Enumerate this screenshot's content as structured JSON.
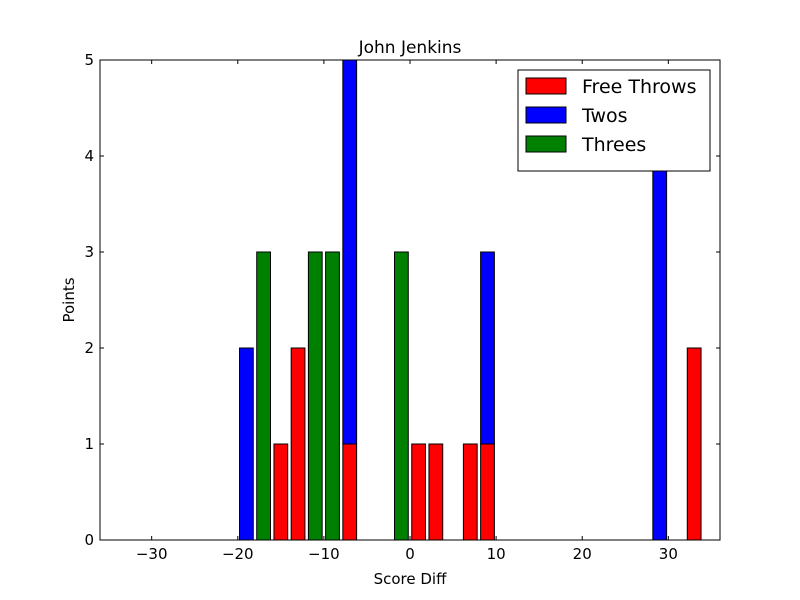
{
  "chart_data": {
    "type": "bar",
    "stacked": true,
    "title": "John Jenkins",
    "xlabel": "Score Diff",
    "ylabel": "Points",
    "xlim": [
      -36,
      36
    ],
    "ylim": [
      0,
      5
    ],
    "bar_width": 1.6,
    "x_ticks": [
      -30,
      -20,
      -10,
      0,
      10,
      20,
      30
    ],
    "x_tick_labels": [
      "−30",
      "−20",
      "−10",
      "0",
      "10",
      "20",
      "30"
    ],
    "y_ticks": [
      0,
      1,
      2,
      3,
      4,
      5
    ],
    "y_tick_labels": [
      "0",
      "1",
      "2",
      "3",
      "4",
      "5"
    ],
    "legend_position": "top-right",
    "x": [
      -35,
      -33,
      -31,
      -29,
      -27,
      -25,
      -23,
      -21,
      -19,
      -17,
      -15,
      -13,
      -11,
      -9,
      -7,
      -5,
      -3,
      -1,
      1,
      3,
      5,
      7,
      9,
      11,
      13,
      15,
      17,
      19,
      21,
      23,
      25,
      27,
      29,
      31,
      33
    ],
    "series": [
      {
        "name": "Free Throws",
        "color": "#ff0000",
        "values": [
          0,
          0,
          0,
          0,
          0,
          0,
          0,
          0,
          0,
          0,
          1,
          2,
          0,
          0,
          1,
          0,
          0,
          0,
          1,
          1,
          0,
          1,
          1,
          0,
          0,
          0,
          0,
          0,
          0,
          0,
          0,
          0,
          0,
          0,
          2
        ]
      },
      {
        "name": "Twos",
        "color": "#0000ff",
        "values": [
          0,
          0,
          0,
          0,
          0,
          0,
          0,
          0,
          2,
          0,
          0,
          0,
          0,
          0,
          4,
          0,
          0,
          0,
          0,
          0,
          0,
          0,
          2,
          0,
          0,
          0,
          0,
          0,
          0,
          0,
          0,
          0,
          4,
          0,
          0
        ]
      },
      {
        "name": "Threes",
        "color": "#008000",
        "values": [
          0,
          0,
          0,
          0,
          0,
          0,
          0,
          0,
          0,
          3,
          0,
          0,
          3,
          3,
          0,
          0,
          0,
          3,
          0,
          0,
          0,
          0,
          0,
          0,
          0,
          0,
          0,
          0,
          0,
          0,
          0,
          0,
          0,
          0,
          0
        ]
      }
    ]
  }
}
